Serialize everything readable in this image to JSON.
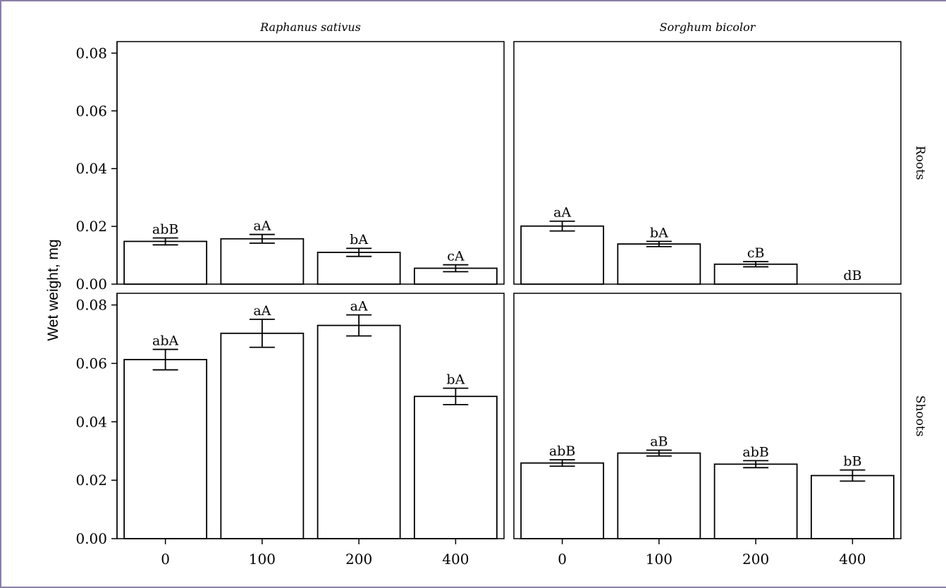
{
  "chart_data": {
    "type": "bar",
    "ylabel": "Wet weight, mg",
    "xlabel": "",
    "ylim": [
      0,
      0.085
    ],
    "yticks": [
      "0.00",
      "0.02",
      "0.04",
      "0.06",
      "0.08"
    ],
    "categories": [
      "0",
      "100",
      "200",
      "400"
    ],
    "columns": [
      "Raphanus sativus",
      "Sorghum bicolor"
    ],
    "rows": [
      "Roots",
      "Shoots"
    ],
    "panels": [
      {
        "column": "Raphanus sativus",
        "row": "Roots",
        "values": [
          0.0148,
          0.0157,
          0.011,
          0.0055
        ],
        "errors": [
          0.0012,
          0.0015,
          0.0014,
          0.0012
        ],
        "labels": [
          "abB",
          "aA",
          "bA",
          "cA"
        ]
      },
      {
        "column": "Sorghum bicolor",
        "row": "Roots",
        "values": [
          0.0201,
          0.0139,
          0.0069,
          0.0
        ],
        "errors": [
          0.0017,
          0.0009,
          0.0009,
          0.0
        ],
        "labels": [
          "aA",
          "bA",
          "cB",
          "dB"
        ]
      },
      {
        "column": "Raphanus sativus",
        "row": "Shoots",
        "values": [
          0.0613,
          0.0703,
          0.073,
          0.0487
        ],
        "errors": [
          0.0035,
          0.0048,
          0.0036,
          0.0028
        ],
        "labels": [
          "abA",
          "aA",
          "aA",
          "bA"
        ]
      },
      {
        "column": "Sorghum bicolor",
        "row": "Shoots",
        "values": [
          0.0259,
          0.0293,
          0.0255,
          0.0216
        ],
        "errors": [
          0.0011,
          0.001,
          0.0012,
          0.0019
        ],
        "labels": [
          "abB",
          "aB",
          "abB",
          "bB"
        ]
      }
    ],
    "grid": false,
    "legend": "none"
  }
}
